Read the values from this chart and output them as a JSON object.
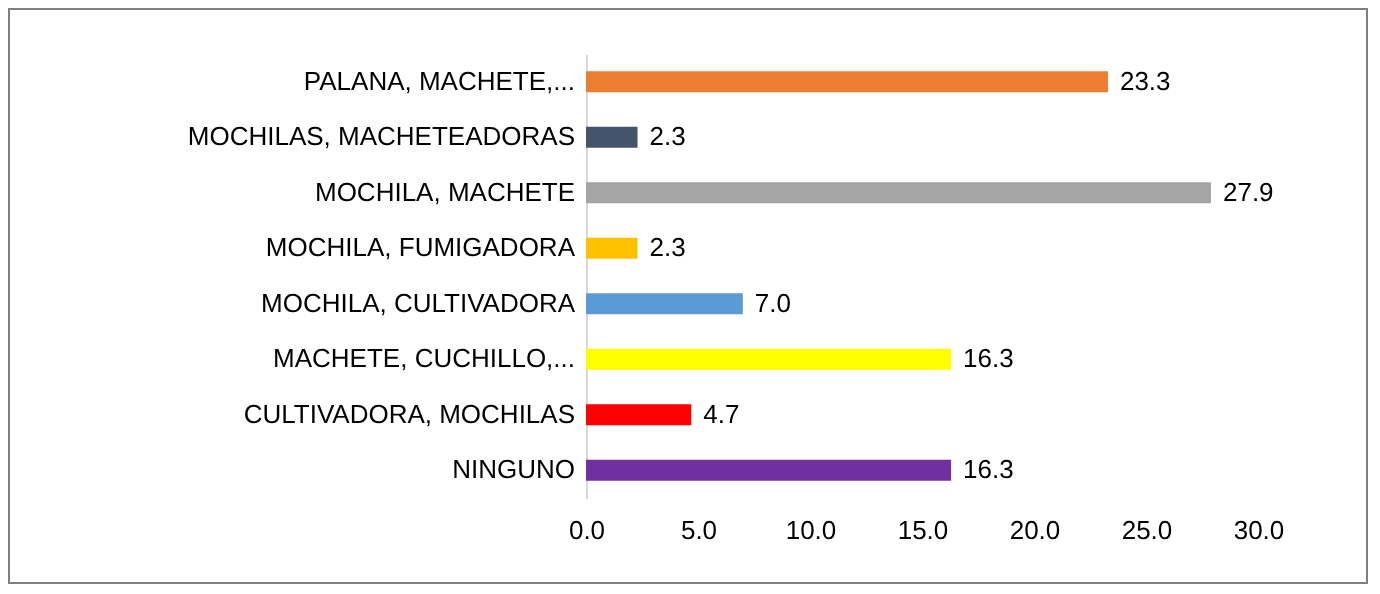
{
  "chart_data": {
    "type": "bar",
    "orientation": "horizontal",
    "categories": [
      "PALANA, MACHETE,...",
      "MOCHILAS, MACHETEADORAS",
      "MOCHILA, MACHETE",
      "MOCHILA, FUMIGADORA",
      "MOCHILA, CULTIVADORA",
      "MACHETE, CUCHILLO,...",
      "CULTIVADORA, MOCHILAS",
      "NINGUNO"
    ],
    "values": [
      23.3,
      2.3,
      27.9,
      2.3,
      7.0,
      16.3,
      4.7,
      16.3
    ],
    "value_labels": [
      "23.3",
      "2.3",
      "27.9",
      "2.3",
      "7.0",
      "16.3",
      "4.7",
      "16.3"
    ],
    "colors": [
      "#ed7d31",
      "#44546a",
      "#a5a5a5",
      "#ffc000",
      "#5b9bd5",
      "#ffff00",
      "#ff0000",
      "#7030a0"
    ],
    "xlim": [
      0,
      30
    ],
    "xticks": [
      {
        "value": 0,
        "label": "0.0"
      },
      {
        "value": 5,
        "label": "5.0"
      },
      {
        "value": 10,
        "label": "10.0"
      },
      {
        "value": 15,
        "label": "15.0"
      },
      {
        "value": 20,
        "label": "20.0"
      },
      {
        "value": 25,
        "label": "25.0"
      },
      {
        "value": 30,
        "label": "30.0"
      }
    ],
    "grid": false
  }
}
